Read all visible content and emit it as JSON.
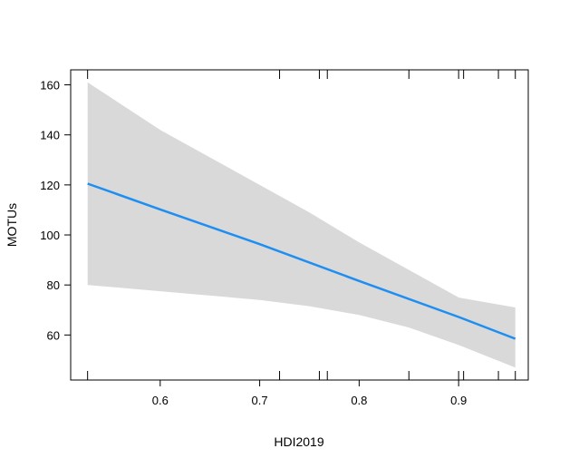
{
  "chart_data": {
    "type": "line",
    "title": "",
    "xlabel": "HDI2019",
    "ylabel": "MOTUs",
    "xlim": [
      0.51,
      0.97
    ],
    "ylim": [
      42,
      166
    ],
    "x_ticks": [
      0.6,
      0.7,
      0.8,
      0.9
    ],
    "x_tick_labels": [
      "0.6",
      "0.7",
      "0.8",
      "0.9"
    ],
    "y_ticks": [
      60,
      80,
      100,
      120,
      140,
      160
    ],
    "y_tick_labels": [
      "60",
      "80",
      "100",
      "120",
      "140",
      "160"
    ],
    "grid": false,
    "legend": "none",
    "series": [
      {
        "x": [
          0.527,
          0.6,
          0.7,
          0.8,
          0.9,
          0.957
        ],
        "y": [
          120.5,
          110.2,
          96.3,
          81.6,
          67.2,
          58.5
        ],
        "color": "#1f8ef1"
      }
    ],
    "confidence_band": {
      "x": [
        0.527,
        0.6,
        0.7,
        0.75,
        0.8,
        0.85,
        0.9,
        0.957
      ],
      "upper": [
        161,
        142,
        120,
        109,
        97,
        86,
        75,
        71
      ],
      "lower": [
        80,
        77.5,
        74,
        71.5,
        68,
        63,
        56,
        47
      ],
      "color": "#d9d9d9"
    },
    "rug_x": [
      0.527,
      0.72,
      0.76,
      0.768,
      0.85,
      0.9,
      0.905,
      0.94,
      0.957
    ]
  }
}
